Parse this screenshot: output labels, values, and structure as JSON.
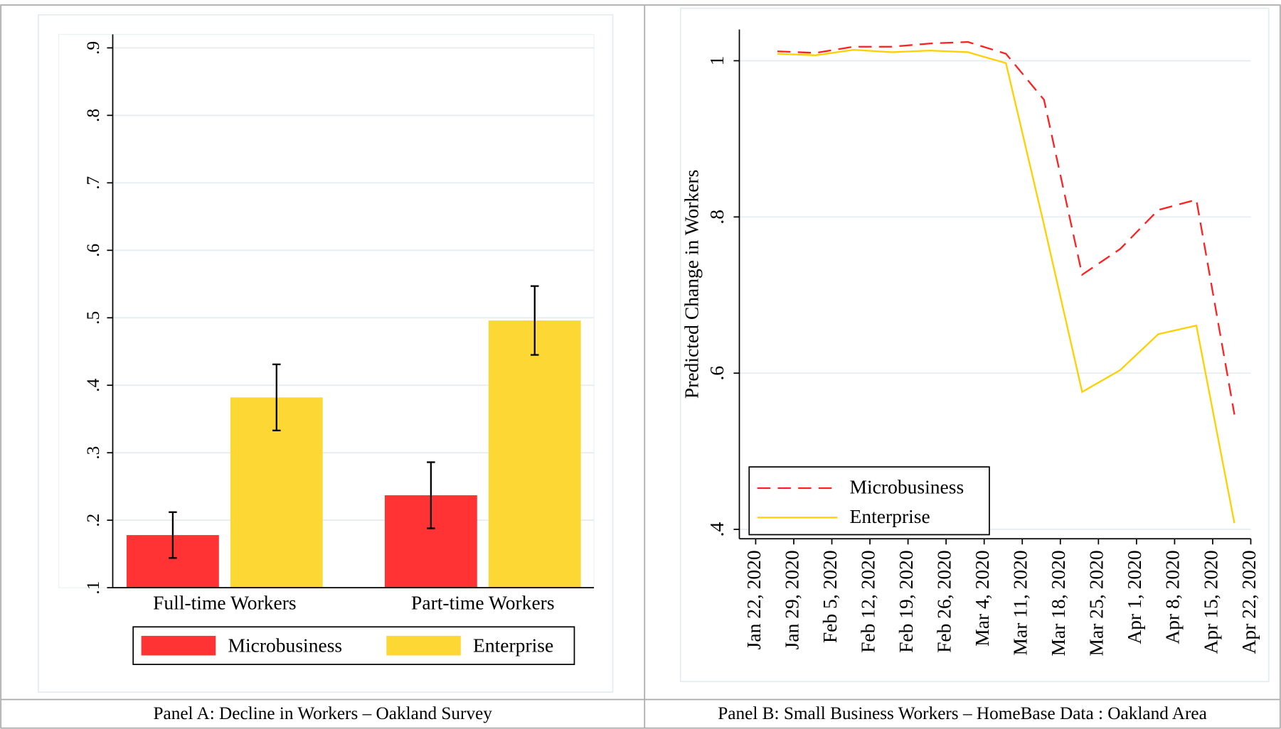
{
  "chart_data": [
    {
      "type": "bar",
      "caption": "Panel A: Decline in Workers – Oakland Survey",
      "categories": [
        "Full-time Workers",
        "Part-time Workers"
      ],
      "series": [
        {
          "name": "Microbusiness",
          "color": "#ff3333",
          "values": [
            0.178,
            0.237
          ],
          "errors": [
            0.034,
            0.049
          ]
        },
        {
          "name": "Enterprise",
          "color": "#fdd835",
          "values": [
            0.382,
            0.496
          ],
          "errors": [
            0.049,
            0.051
          ]
        }
      ],
      "ylim": [
        0.1,
        0.92
      ],
      "yticks": [
        {
          "value": 0.1,
          "label": ".1"
        },
        {
          "value": 0.2,
          "label": ".2"
        },
        {
          "value": 0.3,
          "label": ".3"
        },
        {
          "value": 0.4,
          "label": ".4"
        },
        {
          "value": 0.5,
          "label": ".5"
        },
        {
          "value": 0.6,
          "label": ".6"
        },
        {
          "value": 0.7,
          "label": ".7"
        },
        {
          "value": 0.8,
          "label": ".8"
        },
        {
          "value": 0.9,
          "label": ".9"
        }
      ],
      "grid": true,
      "legend": "bottom"
    },
    {
      "type": "line",
      "caption": "Panel B: Small Business Workers – HomeBase Data : Oakland Area",
      "ylabel": "Predicted Change in Workers",
      "x": [
        "2020-01-26",
        "2020-02-02",
        "2020-02-09",
        "2020-02-16",
        "2020-02-23",
        "2020-03-01",
        "2020-03-08",
        "2020-03-15",
        "2020-03-22",
        "2020-03-29",
        "2020-04-05",
        "2020-04-12",
        "2020-04-19"
      ],
      "series": [
        {
          "name": "Microbusiness",
          "color": "#ff2020",
          "dashed": true,
          "values": [
            1.012,
            1.01,
            1.018,
            1.018,
            1.022,
            1.024,
            1.009,
            0.95,
            0.726,
            0.759,
            0.809,
            0.822,
            0.547
          ]
        },
        {
          "name": "Enterprise",
          "color": "#ffd000",
          "dashed": false,
          "values": [
            1.009,
            1.007,
            1.014,
            1.011,
            1.013,
            1.011,
            0.997,
            0.79,
            0.576,
            0.604,
            0.65,
            0.661,
            0.408
          ]
        }
      ],
      "xlim": [
        "2020-01-19",
        "2020-04-22"
      ],
      "xticks": [
        {
          "value": "2020-01-22",
          "label": "Jan 22, 2020"
        },
        {
          "value": "2020-01-29",
          "label": "Jan 29, 2020"
        },
        {
          "value": "2020-02-05",
          "label": "Feb 5, 2020"
        },
        {
          "value": "2020-02-12",
          "label": "Feb 12, 2020"
        },
        {
          "value": "2020-02-19",
          "label": "Feb 19, 2020"
        },
        {
          "value": "2020-02-26",
          "label": "Feb 26, 2020"
        },
        {
          "value": "2020-03-04",
          "label": "Mar 4, 2020"
        },
        {
          "value": "2020-03-11",
          "label": "Mar 11, 2020"
        },
        {
          "value": "2020-03-18",
          "label": "Mar 18, 2020"
        },
        {
          "value": "2020-03-25",
          "label": "Mar 25, 2020"
        },
        {
          "value": "2020-04-01",
          "label": "Apr 1, 2020"
        },
        {
          "value": "2020-04-08",
          "label": "Apr 8, 2020"
        },
        {
          "value": "2020-04-15",
          "label": "Apr 15, 2020"
        },
        {
          "value": "2020-04-22",
          "label": "Apr 22, 2020"
        }
      ],
      "ylim": [
        0.388,
        1.04
      ],
      "yticks": [
        {
          "value": 0.4,
          "label": ".4"
        },
        {
          "value": 0.6,
          "label": ".6"
        },
        {
          "value": 0.8,
          "label": ".8"
        },
        1
      ],
      "grid": true,
      "legend": "bottom left"
    }
  ]
}
